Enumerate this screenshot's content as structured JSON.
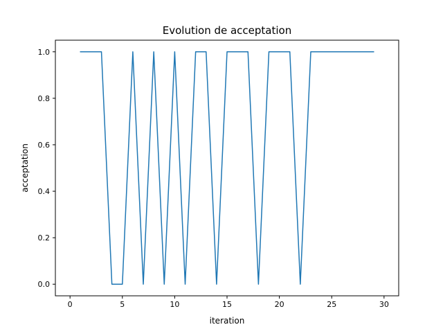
{
  "chart_data": {
    "type": "line",
    "title": "Evolution de acceptation",
    "xlabel": "iteration",
    "ylabel": "acceptation",
    "xlim": [
      -1.4,
      31.4
    ],
    "ylim": [
      -0.05,
      1.05
    ],
    "x_ticks": [
      0,
      5,
      10,
      15,
      20,
      25,
      30
    ],
    "y_ticks": [
      0.0,
      0.2,
      0.4,
      0.6,
      0.8,
      1.0
    ],
    "x_tick_labels": [
      "0",
      "5",
      "10",
      "15",
      "20",
      "25",
      "30"
    ],
    "y_tick_labels": [
      "0.0",
      "0.2",
      "0.4",
      "0.6",
      "0.8",
      "1.0"
    ],
    "grid": false,
    "series": [
      {
        "color": "#1f77b4",
        "x": [
          1,
          2,
          3,
          4,
          5,
          6,
          7,
          8,
          9,
          10,
          11,
          12,
          13,
          14,
          15,
          16,
          17,
          18,
          19,
          20,
          21,
          22,
          23,
          24,
          25,
          26,
          27,
          28,
          29
        ],
        "values": [
          1,
          1,
          1,
          0,
          0,
          1,
          0,
          1,
          0,
          1,
          0,
          1,
          1,
          0,
          1,
          1,
          1,
          0,
          1,
          1,
          1,
          0,
          1,
          1,
          1,
          1,
          1,
          1,
          1
        ]
      }
    ]
  }
}
